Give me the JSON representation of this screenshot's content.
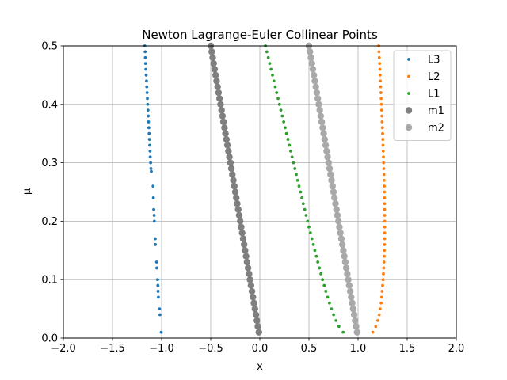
{
  "chart_data": {
    "type": "scatter",
    "title": "Newton Lagrange-Euler Collinear Points",
    "xlabel": "x",
    "ylabel": "μ",
    "xlim": [
      -2.0,
      2.0
    ],
    "ylim": [
      0.0,
      0.5
    ],
    "grid": true,
    "legend_position": "top-right",
    "x_ticks": [
      "−2.0",
      "−1.5",
      "−1.0",
      "−0.5",
      "0.0",
      "0.5",
      "1.0",
      "1.5",
      "2.0"
    ],
    "x_tick_values": [
      -2.0,
      -1.5,
      -1.0,
      -0.5,
      0.0,
      0.5,
      1.0,
      1.5,
      2.0
    ],
    "y_ticks": [
      "0.0",
      "0.1",
      "0.2",
      "0.3",
      "0.4",
      "0.5"
    ],
    "y_tick_values": [
      0.0,
      0.1,
      0.2,
      0.3,
      0.4,
      0.5
    ],
    "mu": [
      0.01,
      0.02,
      0.03,
      0.04,
      0.05,
      0.06,
      0.07,
      0.08,
      0.09,
      0.1,
      0.11,
      0.12,
      0.13,
      0.14,
      0.15,
      0.16,
      0.17,
      0.18,
      0.19,
      0.2,
      0.21,
      0.22,
      0.23,
      0.24,
      0.25,
      0.26,
      0.27,
      0.28,
      0.29,
      0.3,
      0.31,
      0.32,
      0.33,
      0.34,
      0.35,
      0.36,
      0.37,
      0.38,
      0.39,
      0.4,
      0.41,
      0.42,
      0.43,
      0.44,
      0.45,
      0.46,
      0.47,
      0.48,
      0.49,
      0.5
    ],
    "series": [
      {
        "name": "L3",
        "color": "#1f77b4",
        "marker_size": "small",
        "points": [
          [
            -1.004,
            0.01
          ],
          [
            -1.017,
            0.04
          ],
          [
            -1.021,
            0.05
          ],
          [
            -1.033,
            0.07
          ],
          [
            -1.036,
            0.08
          ],
          [
            -1.038,
            0.09
          ],
          [
            -1.041,
            0.1
          ],
          [
            -1.049,
            0.12
          ],
          [
            -1.051,
            0.13
          ],
          [
            -1.063,
            0.16
          ],
          [
            -1.065,
            0.17
          ],
          [
            -1.074,
            0.2
          ],
          [
            -1.076,
            0.21
          ],
          [
            -1.08,
            0.22
          ],
          [
            -1.084,
            0.24
          ],
          [
            -1.087,
            0.26
          ],
          [
            -1.105,
            0.285
          ],
          [
            -1.109,
            0.29
          ],
          [
            -1.112,
            0.3
          ],
          [
            -1.116,
            0.31
          ],
          [
            -1.118,
            0.32
          ],
          [
            -1.121,
            0.33
          ],
          [
            -1.124,
            0.34
          ],
          [
            -1.127,
            0.35
          ],
          [
            -1.13,
            0.36
          ],
          [
            -1.133,
            0.37
          ],
          [
            -1.136,
            0.38
          ],
          [
            -1.139,
            0.39
          ],
          [
            -1.142,
            0.4
          ],
          [
            -1.145,
            0.41
          ],
          [
            -1.148,
            0.42
          ],
          [
            -1.151,
            0.43
          ],
          [
            -1.154,
            0.44
          ],
          [
            -1.157,
            0.45
          ],
          [
            -1.16,
            0.46
          ],
          [
            -1.163,
            0.47
          ],
          [
            -1.166,
            0.48
          ],
          [
            -1.168,
            0.49
          ],
          [
            -1.171,
            0.5
          ]
        ]
      },
      {
        "name": "L2",
        "color": "#ff7f0e",
        "marker_size": "small",
        "points": [
          [
            1.15,
            0.01
          ],
          [
            1.18,
            0.02
          ],
          [
            1.2,
            0.03
          ],
          [
            1.215,
            0.04
          ],
          [
            1.225,
            0.05
          ],
          [
            1.235,
            0.06
          ],
          [
            1.24,
            0.07
          ],
          [
            1.245,
            0.08
          ],
          [
            1.25,
            0.09
          ],
          [
            1.255,
            0.1
          ],
          [
            1.258,
            0.11
          ],
          [
            1.261,
            0.12
          ],
          [
            1.264,
            0.13
          ],
          [
            1.266,
            0.14
          ],
          [
            1.268,
            0.15
          ],
          [
            1.269,
            0.16
          ],
          [
            1.27,
            0.17
          ],
          [
            1.271,
            0.18
          ],
          [
            1.271,
            0.19
          ],
          [
            1.271,
            0.2
          ],
          [
            1.271,
            0.21
          ],
          [
            1.27,
            0.22
          ],
          [
            1.27,
            0.23
          ],
          [
            1.269,
            0.24
          ],
          [
            1.268,
            0.25
          ],
          [
            1.267,
            0.26
          ],
          [
            1.265,
            0.27
          ],
          [
            1.264,
            0.28
          ],
          [
            1.262,
            0.29
          ],
          [
            1.26,
            0.3
          ],
          [
            1.258,
            0.31
          ],
          [
            1.256,
            0.32
          ],
          [
            1.254,
            0.33
          ],
          [
            1.252,
            0.34
          ],
          [
            1.25,
            0.35
          ],
          [
            1.248,
            0.36
          ],
          [
            1.245,
            0.37
          ],
          [
            1.243,
            0.38
          ],
          [
            1.24,
            0.39
          ],
          [
            1.238,
            0.4
          ],
          [
            1.235,
            0.41
          ],
          [
            1.233,
            0.42
          ],
          [
            1.23,
            0.43
          ],
          [
            1.227,
            0.44
          ],
          [
            1.224,
            0.45
          ],
          [
            1.222,
            0.46
          ],
          [
            1.219,
            0.47
          ],
          [
            1.216,
            0.48
          ],
          [
            1.213,
            0.49
          ],
          [
            1.21,
            0.5
          ]
        ]
      },
      {
        "name": "L1",
        "color": "#2ca02c",
        "marker_size": "small",
        "points": [
          [
            0.848,
            0.01
          ],
          [
            0.805,
            0.02
          ],
          [
            0.776,
            0.03
          ],
          [
            0.751,
            0.04
          ],
          [
            0.729,
            0.05
          ],
          [
            0.709,
            0.06
          ],
          [
            0.69,
            0.07
          ],
          [
            0.672,
            0.08
          ],
          [
            0.655,
            0.09
          ],
          [
            0.638,
            0.1
          ],
          [
            0.622,
            0.11
          ],
          [
            0.606,
            0.12
          ],
          [
            0.59,
            0.13
          ],
          [
            0.575,
            0.14
          ],
          [
            0.56,
            0.15
          ],
          [
            0.545,
            0.16
          ],
          [
            0.53,
            0.17
          ],
          [
            0.515,
            0.18
          ],
          [
            0.5,
            0.19
          ],
          [
            0.486,
            0.2
          ],
          [
            0.471,
            0.21
          ],
          [
            0.457,
            0.22
          ],
          [
            0.442,
            0.23
          ],
          [
            0.428,
            0.24
          ],
          [
            0.414,
            0.25
          ],
          [
            0.399,
            0.26
          ],
          [
            0.385,
            0.27
          ],
          [
            0.371,
            0.28
          ],
          [
            0.357,
            0.29
          ],
          [
            0.342,
            0.3
          ],
          [
            0.328,
            0.31
          ],
          [
            0.314,
            0.32
          ],
          [
            0.3,
            0.33
          ],
          [
            0.286,
            0.34
          ],
          [
            0.271,
            0.35
          ],
          [
            0.257,
            0.36
          ],
          [
            0.243,
            0.37
          ],
          [
            0.229,
            0.38
          ],
          [
            0.214,
            0.39
          ],
          [
            0.2,
            0.4
          ],
          [
            0.186,
            0.41
          ],
          [
            0.171,
            0.42
          ],
          [
            0.157,
            0.43
          ],
          [
            0.143,
            0.44
          ],
          [
            0.129,
            0.45
          ],
          [
            0.114,
            0.46
          ],
          [
            0.1,
            0.47
          ],
          [
            0.086,
            0.48
          ],
          [
            0.071,
            0.49
          ],
          [
            0.057,
            0.5
          ]
        ]
      },
      {
        "name": "m1",
        "color": "#7f7f7f",
        "marker_size": "large",
        "points": "x = -mu"
      },
      {
        "name": "m2",
        "color": "#a9a9a9",
        "marker_size": "large",
        "points": "x = 1 - mu"
      }
    ]
  }
}
